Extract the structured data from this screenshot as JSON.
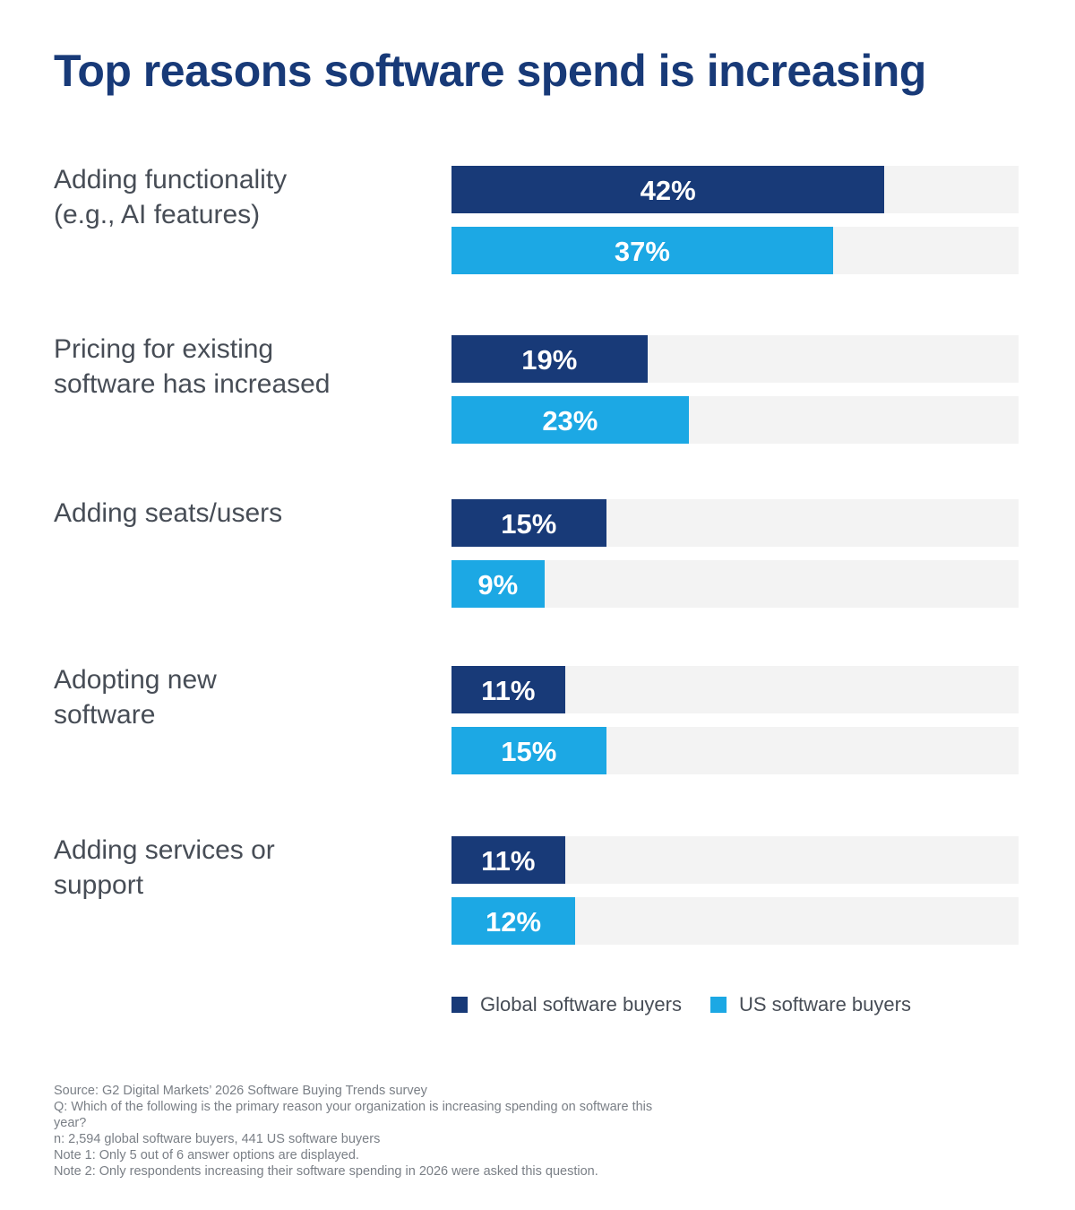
{
  "chart_data": {
    "type": "bar",
    "orientation": "horizontal",
    "title": "Top reasons software spend is increasing",
    "categories": [
      [
        "Adding functionality",
        "(e.g., AI features)"
      ],
      [
        "Pricing for existing",
        "software has increased"
      ],
      [
        "Adding seats/users"
      ],
      [
        "Adopting new",
        "software"
      ],
      [
        "Adding services or",
        "support"
      ]
    ],
    "series": [
      {
        "name": "Global software buyers",
        "color": "#183a78",
        "values": [
          42,
          19,
          15,
          11,
          11
        ],
        "labels": [
          "42%",
          "19%",
          "15%",
          "11%",
          "11%"
        ]
      },
      {
        "name": "US software buyers",
        "color": "#1ca8e4",
        "values": [
          37,
          23,
          9,
          15,
          12
        ],
        "labels": [
          "37%",
          "23%",
          "9%",
          "15%",
          "12%"
        ]
      }
    ],
    "xlim": [
      0,
      55
    ],
    "track_color": "#f3f3f3",
    "grid": false,
    "legend_position": "bottom"
  },
  "notes": [
    "Source: G2 Digital Markets’ 2026 Software Buying Trends survey",
    "Q: Which of the following is the primary reason your organization is increasing spending on software this year?",
    "n: 2,594 global software buyers, 441 US software buyers",
    "Note 1: Only 5 out of 6 answer options are displayed.",
    "Note 2: Only respondents increasing their software spending in 2026 were asked this question."
  ]
}
